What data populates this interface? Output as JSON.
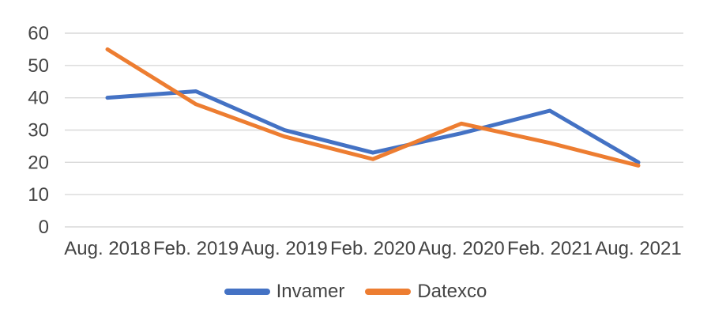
{
  "chart_data": {
    "type": "line",
    "title": "",
    "categories": [
      "Aug. 2018",
      "Feb. 2019",
      "Aug. 2019",
      "Feb. 2020",
      "Aug. 2020",
      "Feb. 2021",
      "Aug. 2021"
    ],
    "series": [
      {
        "name": "Invamer",
        "color": "#4472c4",
        "values": [
          40,
          42,
          30,
          23,
          29,
          36,
          20
        ]
      },
      {
        "name": "Datexco",
        "color": "#ed7d31",
        "values": [
          55,
          38,
          28,
          21,
          32,
          26,
          19
        ]
      }
    ],
    "xlabel": "",
    "ylabel": "",
    "ylim": [
      0,
      60
    ],
    "y_ticks": [
      0,
      10,
      20,
      30,
      40,
      50,
      60
    ],
    "grid": "horizontal",
    "legend_position": "bottom-center"
  },
  "style": {
    "background_color": "#ffffff",
    "grid_color": "#d9d9d9",
    "label_color": "#444444",
    "line_width": 5,
    "tick_font_size": 24
  },
  "legend": {
    "items": [
      {
        "label": "Invamer",
        "color": "#4472c4"
      },
      {
        "label": "Datexco",
        "color": "#ed7d31"
      }
    ]
  }
}
